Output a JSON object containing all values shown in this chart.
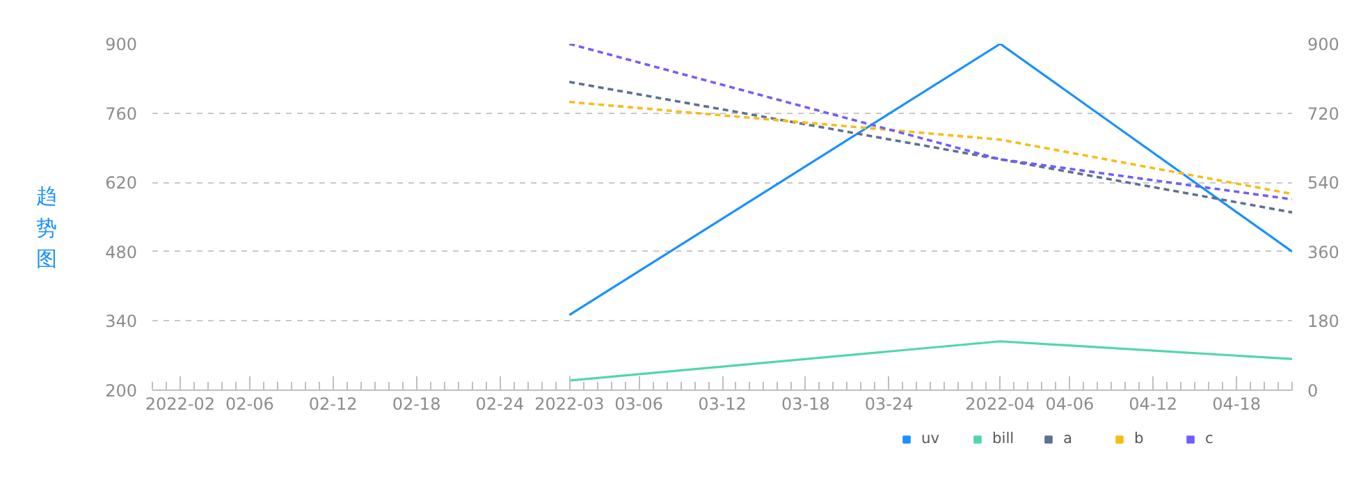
{
  "chart_data": {
    "type": "line",
    "ylabel": "趋势图",
    "x": [
      "2022-03-01",
      "2022-04-01",
      "2022-04-22"
    ],
    "xlim": [
      "2022-01-30",
      "2022-04-22"
    ],
    "xticks": [
      {
        "value": "2022-02-01",
        "label": "2022-02"
      },
      {
        "value": "2022-02-06",
        "label": "02-06"
      },
      {
        "value": "2022-02-12",
        "label": "02-12"
      },
      {
        "value": "2022-02-18",
        "label": "02-18"
      },
      {
        "value": "2022-02-24",
        "label": "02-24"
      },
      {
        "value": "2022-03-01",
        "label": "2022-03"
      },
      {
        "value": "2022-03-06",
        "label": "03-06"
      },
      {
        "value": "2022-03-12",
        "label": "03-12"
      },
      {
        "value": "2022-03-18",
        "label": "03-18"
      },
      {
        "value": "2022-03-24",
        "label": "03-24"
      },
      {
        "value": "2022-04-01",
        "label": "2022-04"
      },
      {
        "value": "2022-04-06",
        "label": "04-06"
      },
      {
        "value": "2022-04-12",
        "label": "04-12"
      },
      {
        "value": "2022-04-18",
        "label": "04-18"
      }
    ],
    "ylim": [
      200,
      900
    ],
    "yticks": [
      200,
      340,
      480,
      620,
      760,
      900
    ],
    "y2lim": [
      0,
      900
    ],
    "y2ticks": [
      0,
      180,
      360,
      540,
      720,
      900
    ],
    "grid": "y",
    "legend": "bottom right",
    "series": [
      {
        "name": "uv",
        "color": "#1890ff",
        "values": [
          352,
          900,
          480
        ],
        "line_style": "solid"
      },
      {
        "name": "bill",
        "color": "#4fd8a6",
        "values": [
          25,
          127,
          81
        ],
        "axis": "y2",
        "line_style": "solid"
      },
      {
        "name": "a",
        "color": "#5d7092",
        "values": [
          801,
          600,
          462
        ],
        "axis": "y2",
        "line_style": "dashed"
      },
      {
        "name": "b",
        "color": "#f6bd16",
        "values": [
          749,
          651,
          510
        ],
        "axis": "y2",
        "line_style": "dashed"
      },
      {
        "name": "c",
        "color": "#6f5ef9",
        "values": [
          900,
          600,
          496
        ],
        "axis": "y2",
        "line_style": "dashed"
      }
    ]
  }
}
